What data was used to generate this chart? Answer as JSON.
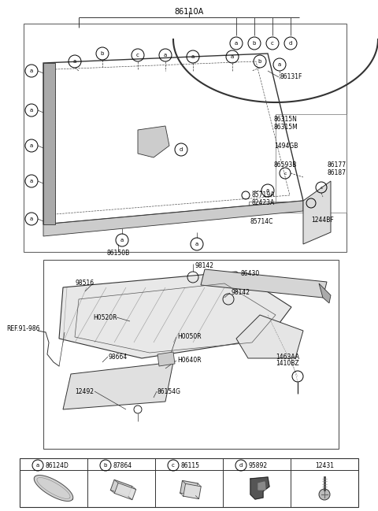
{
  "title": "86110A",
  "bg_color": "#ffffff",
  "fig_width": 4.8,
  "fig_height": 6.49,
  "dpi": 100,
  "legend_items": [
    {
      "label": "a",
      "code": "86124D"
    },
    {
      "label": "b",
      "code": "87864"
    },
    {
      "label": "c",
      "code": "86115"
    },
    {
      "label": "d",
      "code": "95892"
    },
    {
      "label": "",
      "code": "12431"
    }
  ],
  "circle_r": 0.013,
  "font_size": 5.5,
  "title_font_size": 7.0
}
